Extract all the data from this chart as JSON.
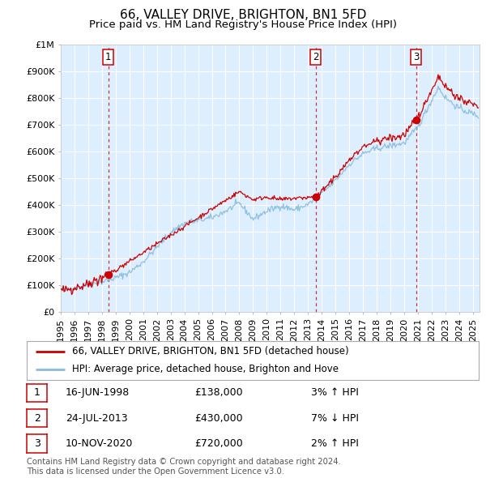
{
  "title": "66, VALLEY DRIVE, BRIGHTON, BN1 5FD",
  "subtitle": "Price paid vs. HM Land Registry's House Price Index (HPI)",
  "ylim": [
    0,
    1000000
  ],
  "yticks": [
    0,
    100000,
    200000,
    300000,
    400000,
    500000,
    600000,
    700000,
    800000,
    900000,
    1000000
  ],
  "ytick_labels": [
    "£0",
    "£100K",
    "£200K",
    "£300K",
    "£400K",
    "£500K",
    "£600K",
    "£700K",
    "£800K",
    "£900K",
    "£1M"
  ],
  "xlim_start": 1995.0,
  "xlim_end": 2025.5,
  "transactions": [
    {
      "num": 1,
      "date_str": "16-JUN-1998",
      "year": 1998.46,
      "price": 138000,
      "hpi_pct": "3%",
      "hpi_dir": "↑"
    },
    {
      "num": 2,
      "date_str": "24-JUL-2013",
      "year": 2013.56,
      "price": 430000,
      "hpi_pct": "7%",
      "hpi_dir": "↓"
    },
    {
      "num": 3,
      "date_str": "10-NOV-2020",
      "year": 2020.86,
      "price": 720000,
      "hpi_pct": "2%",
      "hpi_dir": "↑"
    }
  ],
  "red_line_color": "#cc0000",
  "blue_line_color": "#88bbdd",
  "plot_bg_color": "#ddeeff",
  "grid_color": "#ffffff",
  "dashed_line_color": "#cc0000",
  "legend_label_red": "66, VALLEY DRIVE, BRIGHTON, BN1 5FD (detached house)",
  "legend_label_blue": "HPI: Average price, detached house, Brighton and Hove",
  "footer": "Contains HM Land Registry data © Crown copyright and database right 2024.\nThis data is licensed under the Open Government Licence v3.0.",
  "title_fontsize": 11,
  "subtitle_fontsize": 9.5,
  "tick_fontsize": 8,
  "legend_fontsize": 8.5,
  "table_fontsize": 9
}
